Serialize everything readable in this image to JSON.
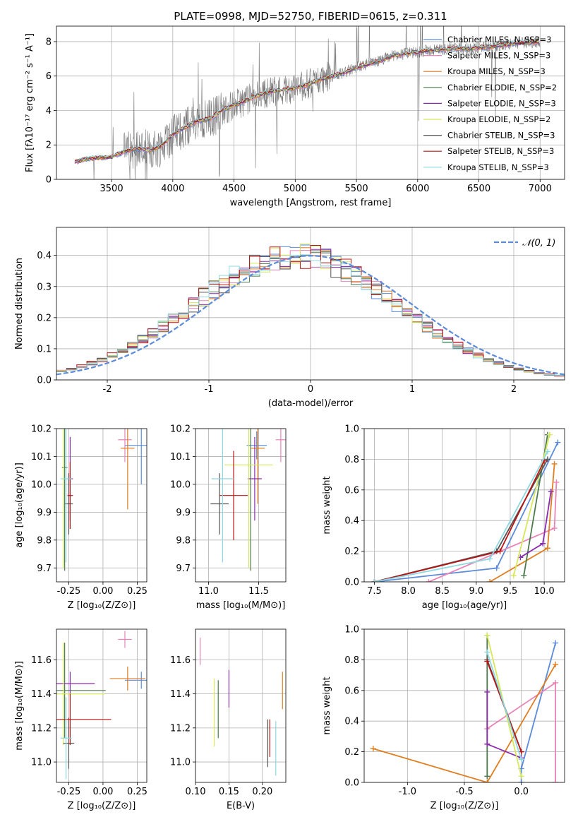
{
  "chart_data": [
    {
      "type": "line",
      "title": "PLATE=0998, MJD=52750, FIBERID=0615, z=0.311",
      "xlabel": "wavelength [Angstrom, rest frame]",
      "ylabel": "Flux [fλ10⁻¹⁷ erg cm⁻² s⁻¹ A⁻¹]",
      "xlim": [
        3050,
        7200
      ],
      "ylim": [
        0,
        8.9
      ],
      "xticks": [
        3500,
        4000,
        4500,
        5000,
        5500,
        6000,
        6500,
        7000
      ],
      "yticks": [
        0,
        2,
        4,
        6,
        8
      ],
      "legend_position": "top-right",
      "legend": [
        {
          "label": "Chabrier MILES, N_SSP=3",
          "color": "#5b8bd9"
        },
        {
          "label": "Salpeter MILES, N_SSP=3",
          "color": "#e884b8"
        },
        {
          "label": "Kroupa MILES, N_SSP=3",
          "color": "#e07e22"
        },
        {
          "label": "Chabrier ELODIE, N_SSP=2",
          "color": "#4d7a4d"
        },
        {
          "label": "Salpeter ELODIE, N_SSP=3",
          "color": "#8a2cad"
        },
        {
          "label": "Kroupa ELODIE, N_SSP=2",
          "color": "#d6e85a"
        },
        {
          "label": "Chabrier STELIB, N_SSP=3",
          "color": "#555555"
        },
        {
          "label": "Salpeter STELIB, N_SSP=3",
          "color": "#b81414"
        },
        {
          "label": "Kroupa STELIB, N_SSP=3",
          "color": "#8ed8e0"
        }
      ],
      "continuum": [
        [
          3200,
          1.0
        ],
        [
          3300,
          1.2
        ],
        [
          3400,
          1.25
        ],
        [
          3500,
          1.3
        ],
        [
          3600,
          1.6
        ],
        [
          3700,
          1.8
        ],
        [
          3800,
          1.7
        ],
        [
          3900,
          1.9
        ],
        [
          4000,
          2.6
        ],
        [
          4100,
          3.0
        ],
        [
          4200,
          3.4
        ],
        [
          4300,
          3.5
        ],
        [
          4400,
          4.0
        ],
        [
          4500,
          4.3
        ],
        [
          4600,
          4.6
        ],
        [
          4700,
          4.9
        ],
        [
          4800,
          5.1
        ],
        [
          4900,
          5.2
        ],
        [
          5000,
          5.3
        ],
        [
          5100,
          5.5
        ],
        [
          5200,
          5.8
        ],
        [
          5300,
          6.0
        ],
        [
          5400,
          6.2
        ],
        [
          5500,
          6.5
        ],
        [
          5600,
          6.7
        ],
        [
          5700,
          6.9
        ],
        [
          5800,
          7.2
        ],
        [
          5900,
          7.3
        ],
        [
          6000,
          7.4
        ],
        [
          6100,
          7.5
        ],
        [
          6200,
          7.55
        ],
        [
          6300,
          7.6
        ],
        [
          6400,
          7.6
        ],
        [
          6500,
          7.65
        ],
        [
          6600,
          7.7
        ],
        [
          6700,
          7.8
        ],
        [
          6800,
          7.9
        ],
        [
          6900,
          7.95
        ],
        [
          7000,
          8.0
        ]
      ]
    },
    {
      "type": "line",
      "xlabel": "(data-model)/error",
      "ylabel": "Normed distribution",
      "xlim": [
        -2.5,
        2.5
      ],
      "ylim": [
        0,
        0.49
      ],
      "xticks": [
        -2,
        -1,
        0,
        1,
        2
      ],
      "yticks": [
        0.0,
        0.1,
        0.2,
        0.3,
        0.4
      ],
      "legend_position": "top-right",
      "legend": [
        {
          "label": "𝒩(0, 1)",
          "color": "#5b8bd9"
        }
      ]
    },
    {
      "type": "scatter",
      "xlabel": "Z [log₁₀(Z/Z⊙)]",
      "ylabel": "age [log₁₀(age/yr)]",
      "xlim": [
        -0.34,
        0.32
      ],
      "ylim": [
        9.65,
        10.2
      ],
      "xticks": [
        -0.25,
        0.0,
        0.25
      ],
      "yticks": [
        9.7,
        9.8,
        9.9,
        10.0,
        10.1,
        10.2
      ],
      "points": [
        {
          "color": "#5b8bd9",
          "x": 0.28,
          "y": 10.14,
          "xerr": 0.12,
          "yerr": 0.14
        },
        {
          "color": "#e884b8",
          "x": 0.16,
          "y": 10.16,
          "xerr": 0.05,
          "yerr": 0.08
        },
        {
          "color": "#e07e22",
          "x": 0.18,
          "y": 10.13,
          "xerr": 0.05,
          "yerr": 0.22
        },
        {
          "color": "#4d7a4d",
          "x": -0.28,
          "y": 10.06,
          "xerr": 0.02,
          "yerr": 0.37
        },
        {
          "color": "#8a2cad",
          "x": -0.24,
          "y": 10.02,
          "xerr": 0.02,
          "yerr": 0.15
        },
        {
          "color": "#d6e85a",
          "x": -0.29,
          "y": 10.07,
          "xerr": 0.0,
          "yerr": 0.37
        },
        {
          "color": "#555555",
          "x": -0.25,
          "y": 9.93,
          "xerr": 0.03,
          "yerr": 0.11
        },
        {
          "color": "#b81414",
          "x": -0.24,
          "y": 9.96,
          "xerr": 0.02,
          "yerr": 0.12
        },
        {
          "color": "#8ed8e0",
          "x": -0.27,
          "y": 10.02,
          "xerr": 0.04,
          "yerr": 0.3
        }
      ]
    },
    {
      "type": "scatter",
      "xlabel": "mass [log₁₀(M/M⊙)]",
      "xlim": [
        10.87,
        11.77
      ],
      "ylim": [
        9.65,
        10.2
      ],
      "xticks": [
        11.0,
        11.5
      ],
      "yticks": [
        9.7,
        9.8,
        9.9,
        10.0,
        10.1,
        10.2
      ],
      "points": [
        {
          "color": "#5b8bd9",
          "x": 11.48,
          "y": 10.14,
          "xerr": 0.1,
          "yerr": 0.05
        },
        {
          "color": "#e884b8",
          "x": 11.72,
          "y": 10.16,
          "xerr": 0.05,
          "yerr": 0.08
        },
        {
          "color": "#e07e22",
          "x": 11.49,
          "y": 10.13,
          "xerr": 0.07,
          "yerr": 0.2
        },
        {
          "color": "#4d7a4d",
          "x": 11.42,
          "y": 10.06,
          "xerr": 0.0,
          "yerr": 0.37
        },
        {
          "color": "#8a2cad",
          "x": 11.46,
          "y": 10.02,
          "xerr": 0.07,
          "yerr": 0.15
        },
        {
          "color": "#d6e85a",
          "x": 11.4,
          "y": 10.07,
          "xerr": 0.24,
          "yerr": 0.37
        },
        {
          "color": "#555555",
          "x": 11.11,
          "y": 9.93,
          "xerr": 0.09,
          "yerr": 0.11
        },
        {
          "color": "#b81414",
          "x": 11.25,
          "y": 9.96,
          "xerr": 0.14,
          "yerr": 0.16
        },
        {
          "color": "#8ed8e0",
          "x": 11.14,
          "y": 10.02,
          "xerr": 0.11,
          "yerr": 0.3
        }
      ]
    },
    {
      "type": "line",
      "xlabel": "age [log₁₀(age/yr)]",
      "ylabel": "mass weight",
      "xlim": [
        7.35,
        10.3
      ],
      "ylim": [
        0,
        1.0
      ],
      "xticks": [
        7.5,
        8.0,
        8.5,
        9.0,
        9.5,
        10.0
      ],
      "yticks": [
        0.0,
        0.2,
        0.4,
        0.6,
        0.8,
        1.0
      ],
      "series": [
        {
          "color": "#5b8bd9",
          "x": [
            7.5,
            9.3,
            10.2
          ],
          "y": [
            0.0,
            0.09,
            0.91
          ]
        },
        {
          "color": "#e884b8",
          "x": [
            8.3,
            10.15,
            10.18
          ],
          "y": [
            0.0,
            0.35,
            0.65
          ]
        },
        {
          "color": "#e07e22",
          "x": [
            9.2,
            10.05,
            10.15
          ],
          "y": [
            0.0,
            0.22,
            0.77
          ]
        },
        {
          "color": "#4d7a4d",
          "x": [
            9.7,
            10.05
          ],
          "y": [
            0.04,
            0.96
          ]
        },
        {
          "color": "#8a2cad",
          "x": [
            9.65,
            9.98,
            10.1
          ],
          "y": [
            0.16,
            0.25,
            0.59
          ]
        },
        {
          "color": "#d6e85a",
          "x": [
            9.55,
            10.08
          ],
          "y": [
            0.04,
            0.96
          ]
        },
        {
          "color": "#555555",
          "x": [
            7.5,
            9.3,
            10.05
          ],
          "y": [
            0.0,
            0.2,
            0.8
          ]
        },
        {
          "color": "#b81414",
          "x": [
            7.5,
            9.35,
            10.0
          ],
          "y": [
            0.0,
            0.2,
            0.79
          ]
        },
        {
          "color": "#8ed8e0",
          "x": [
            7.5,
            9.2,
            10.05
          ],
          "y": [
            0.0,
            0.15,
            0.85
          ]
        }
      ]
    },
    {
      "type": "scatter",
      "xlabel": "Z [log₁₀(Z/Z⊙)]",
      "ylabel": "mass [log₁₀(M/M⊙)]",
      "xlim": [
        -0.34,
        0.32
      ],
      "ylim": [
        10.88,
        11.78
      ],
      "xticks": [
        -0.25,
        0.0,
        0.25
      ],
      "yticks": [
        11.0,
        11.2,
        11.4,
        11.6
      ],
      "points": [
        {
          "color": "#5b8bd9",
          "x": 0.28,
          "y": 11.48,
          "xerr": 0.12,
          "yerr": 0.05
        },
        {
          "color": "#e884b8",
          "x": 0.16,
          "y": 11.72,
          "xerr": 0.05,
          "yerr": 0.05
        },
        {
          "color": "#e07e22",
          "x": 0.18,
          "y": 11.49,
          "xerr": 0.13,
          "yerr": 0.07
        },
        {
          "color": "#4d7a4d",
          "x": -0.28,
          "y": 11.42,
          "xerr": 0.3,
          "yerr": 0.28
        },
        {
          "color": "#8a2cad",
          "x": -0.24,
          "y": 11.46,
          "xerr": 0.18,
          "yerr": 0.07
        },
        {
          "color": "#d6e85a",
          "x": -0.29,
          "y": 11.4,
          "xerr": 0.3,
          "yerr": 0.3
        },
        {
          "color": "#555555",
          "x": -0.25,
          "y": 11.11,
          "xerr": 0.04,
          "yerr": 0.15
        },
        {
          "color": "#b81414",
          "x": -0.24,
          "y": 11.25,
          "xerr": 0.3,
          "yerr": 0.15
        },
        {
          "color": "#8ed8e0",
          "x": -0.27,
          "y": 11.14,
          "xerr": 0.04,
          "yerr": 0.24
        }
      ]
    },
    {
      "type": "scatter",
      "xlabel": "E(B-V)",
      "xlim": [
        0.1,
        0.235
      ],
      "ylim": [
        10.88,
        11.78
      ],
      "xticks": [
        0.1,
        0.15,
        0.2
      ],
      "yticks": [
        11.0,
        11.2,
        11.4,
        11.6
      ],
      "points": [
        {
          "color": "#e884b8",
          "x": 0.107,
          "y": 11.65,
          "yerr": 0.08
        },
        {
          "color": "#d6e85a",
          "x": 0.128,
          "y": 11.29,
          "yerr": 0.2
        },
        {
          "color": "#4d7a4d",
          "x": 0.134,
          "y": 11.31,
          "yerr": 0.17
        },
        {
          "color": "#8a2cad",
          "x": 0.15,
          "y": 11.43,
          "yerr": 0.11
        },
        {
          "color": "#555555",
          "x": 0.208,
          "y": 11.11,
          "yerr": 0.14
        },
        {
          "color": "#b81414",
          "x": 0.211,
          "y": 11.14,
          "yerr": 0.11
        },
        {
          "color": "#8ed8e0",
          "x": 0.22,
          "y": 11.08,
          "yerr": 0.16
        },
        {
          "color": "#e07e22",
          "x": 0.23,
          "y": 11.42,
          "yerr": 0.11
        }
      ]
    },
    {
      "type": "line",
      "xlabel": "Z [log₁₀(Z/Z⊙)]",
      "ylabel": "mass weight",
      "xlim": [
        -1.38,
        0.38
      ],
      "ylim": [
        0,
        1.0
      ],
      "xticks": [
        -1.0,
        -0.5,
        0.0
      ],
      "yticks": [
        0.0,
        0.2,
        0.4,
        0.6,
        0.8,
        1.0
      ],
      "series": [
        {
          "color": "#5b8bd9",
          "x": [
            0.3,
            0.0,
            0.0
          ],
          "y": [
            0.91,
            0.09,
            0.0
          ]
        },
        {
          "color": "#e884b8",
          "x": [
            -0.3,
            0.3,
            0.3
          ],
          "y": [
            0.35,
            0.65,
            0.0
          ]
        },
        {
          "color": "#e07e22",
          "x": [
            -1.3,
            -0.3,
            0.3
          ],
          "y": [
            0.22,
            0.0,
            0.77
          ]
        },
        {
          "color": "#4d7a4d",
          "x": [
            -0.3,
            -0.3
          ],
          "y": [
            0.04,
            0.96
          ]
        },
        {
          "color": "#8a2cad",
          "x": [
            -0.3,
            -0.3,
            0.0
          ],
          "y": [
            0.59,
            0.25,
            0.16
          ]
        },
        {
          "color": "#d6e85a",
          "x": [
            -0.3,
            0.0
          ],
          "y": [
            0.96,
            0.04
          ]
        },
        {
          "color": "#555555",
          "x": [
            -0.3,
            0.0
          ],
          "y": [
            0.8,
            0.2
          ]
        },
        {
          "color": "#b81414",
          "x": [
            -0.3,
            0.0
          ],
          "y": [
            0.79,
            0.2
          ]
        },
        {
          "color": "#8ed8e0",
          "x": [
            -0.3,
            0.0
          ],
          "y": [
            0.85,
            0.15
          ]
        }
      ]
    }
  ]
}
